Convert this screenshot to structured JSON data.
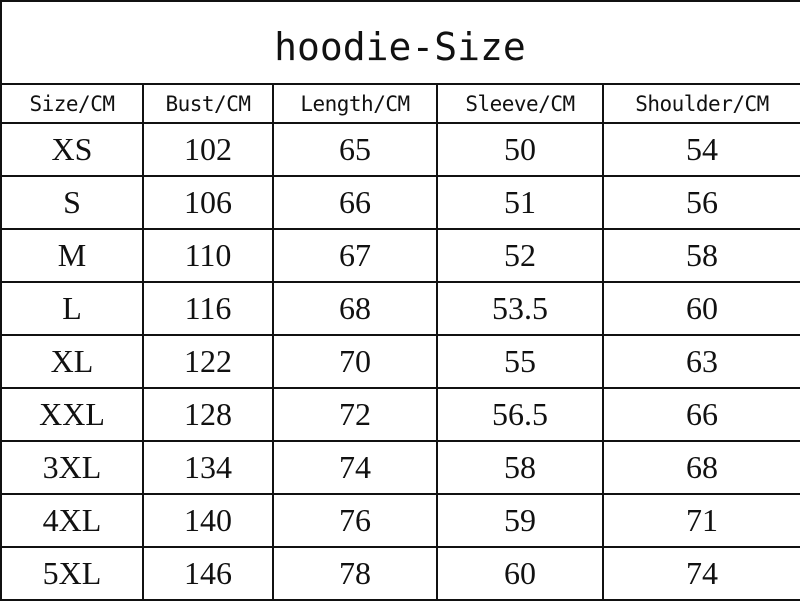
{
  "title": "hoodie-Size",
  "headers": [
    "Size/CM",
    "Bust/CM",
    "Length/CM",
    "Sleeve/CM",
    "Shoulder/CM"
  ],
  "rows": [
    [
      "XS",
      "102",
      "65",
      "50",
      "54"
    ],
    [
      "S",
      "106",
      "66",
      "51",
      "56"
    ],
    [
      "M",
      "110",
      "67",
      "52",
      "58"
    ],
    [
      "L",
      "116",
      "68",
      "53.5",
      "60"
    ],
    [
      "XL",
      "122",
      "70",
      "55",
      "63"
    ],
    [
      "XXL",
      "128",
      "72",
      "56.5",
      "66"
    ],
    [
      "3XL",
      "134",
      "74",
      "58",
      "68"
    ],
    [
      "4XL",
      "140",
      "76",
      "59",
      "71"
    ],
    [
      "5XL",
      "146",
      "78",
      "60",
      "74"
    ]
  ]
}
